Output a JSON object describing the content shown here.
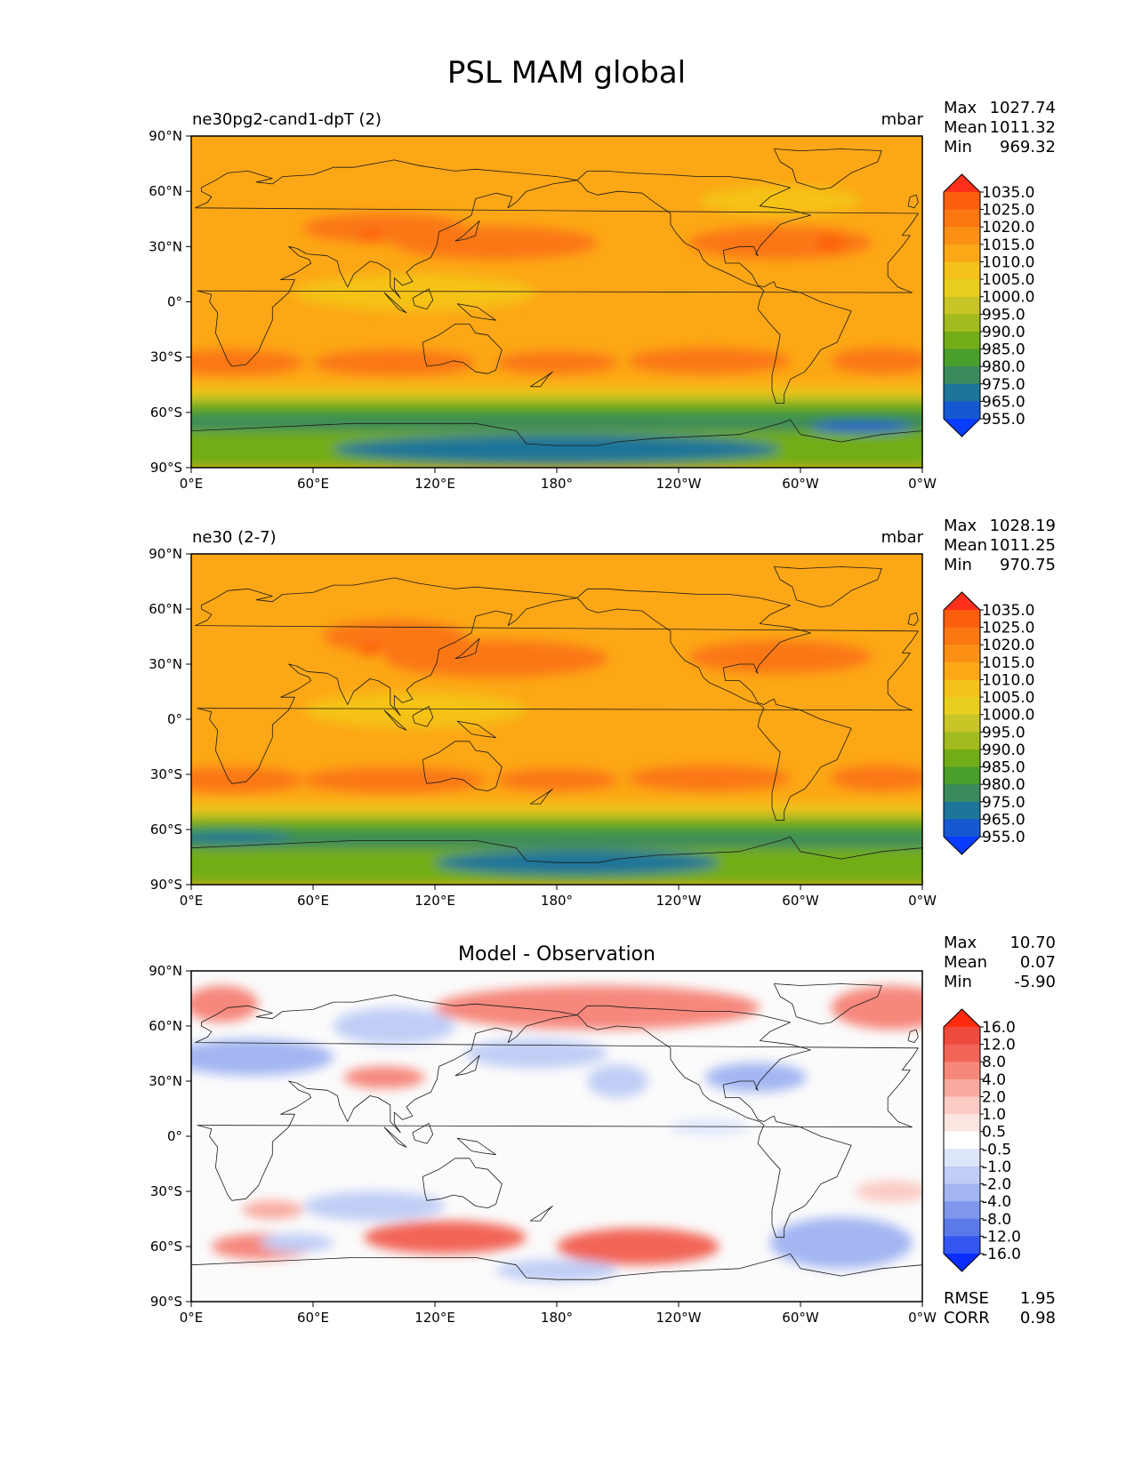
{
  "figure_title": "PSL MAM global",
  "colors": {
    "ocean_base": "#fca716",
    "land_line": "#1a1a1a",
    "diff_base": "#fbfbfb"
  },
  "chart_data": [
    {
      "type": "heatmap",
      "title_left": "ne30pg2-cand1-dpT (2)",
      "units": "mbar",
      "stats": [
        {
          "label": "Max",
          "value": "1027.74"
        },
        {
          "label": "Mean",
          "value": "1011.32"
        },
        {
          "label": "Min",
          "value": "969.32"
        }
      ],
      "xticks": [
        "0°E",
        "60°E",
        "120°E",
        "180°",
        "120°W",
        "60°W",
        "0°W"
      ],
      "yticks": [
        "90°N",
        "60°N",
        "30°N",
        "0°",
        "30°S",
        "60°S",
        "90°S"
      ],
      "xlim": [
        0,
        360
      ],
      "ylim": [
        -90,
        90
      ],
      "colorbar": {
        "labels": [
          "1035.0",
          "1025.0",
          "1020.0",
          "1015.0",
          "1010.0",
          "1005.0",
          "1000.0",
          "995.0",
          "990.0",
          "985.0",
          "980.0",
          "975.0",
          "965.0",
          "955.0"
        ],
        "colors": [
          "#ff3019",
          "#fd5e0e",
          "#fb7712",
          "#fb9014",
          "#fca716",
          "#f5c219",
          "#e8cf1f",
          "#c8c526",
          "#a2bb1f",
          "#72ad18",
          "#4a9e2c",
          "#3a8a5c",
          "#1d7599",
          "#1558d0",
          "#0a3cff"
        ]
      },
      "fields": [
        {
          "lon": 150,
          "lat": 32,
          "level": 2,
          "rx": 50,
          "ry": 9
        },
        {
          "lon": 290,
          "lat": 32,
          "level": 2,
          "rx": 45,
          "ry": 9
        },
        {
          "lon": 95,
          "lat": 40,
          "level": 2,
          "rx": 40,
          "ry": 8
        },
        {
          "lon": 315,
          "lat": 32,
          "level": 1,
          "rx": 7,
          "ry": 4
        },
        {
          "lon": 88,
          "lat": 36,
          "level": 1,
          "rx": 6,
          "ry": 3
        },
        {
          "lon": 20,
          "lat": -33,
          "level": 2,
          "rx": 35,
          "ry": 7
        },
        {
          "lon": 100,
          "lat": -33,
          "level": 2,
          "rx": 40,
          "ry": 7
        },
        {
          "lon": 180,
          "lat": -33,
          "level": 2,
          "rx": 30,
          "ry": 6
        },
        {
          "lon": 255,
          "lat": -32,
          "level": 2,
          "rx": 40,
          "ry": 7
        },
        {
          "lon": 340,
          "lat": -32,
          "level": 2,
          "rx": 25,
          "ry": 7
        },
        {
          "lon": 110,
          "lat": 5,
          "level": 5,
          "rx": 60,
          "ry": 10
        },
        {
          "lon": 290,
          "lat": 55,
          "level": 5,
          "rx": 40,
          "ry": 8
        },
        {
          "lon": 180,
          "lat": -80,
          "level": 12,
          "rx": 110,
          "ry": 8
        },
        {
          "lon": 330,
          "lat": -68,
          "level": 13,
          "rx": 25,
          "ry": 3
        }
      ],
      "bands": [
        {
          "lat_top": -45,
          "lat_bot": -50,
          "level": 5
        },
        {
          "lat_top": -50,
          "lat_bot": -54,
          "level": 7
        },
        {
          "lat_top": -54,
          "lat_bot": -58,
          "level": 9
        },
        {
          "lat_top": -58,
          "lat_bot": -62,
          "level": 10
        },
        {
          "lat_top": -62,
          "lat_bot": -70,
          "level": 11
        },
        {
          "lat_top": -70,
          "lat_bot": -90,
          "level": 9
        }
      ]
    },
    {
      "type": "heatmap",
      "title_left": "ne30 (2-7)",
      "units": "mbar",
      "stats": [
        {
          "label": "Max",
          "value": "1028.19"
        },
        {
          "label": "Mean",
          "value": "1011.25"
        },
        {
          "label": "Min",
          "value": "970.75"
        }
      ],
      "xticks": [
        "0°E",
        "60°E",
        "120°E",
        "180°",
        "120°W",
        "60°W",
        "0°W"
      ],
      "yticks": [
        "90°N",
        "60°N",
        "30°N",
        "0°",
        "30°S",
        "60°S",
        "90°S"
      ],
      "xlim": [
        0,
        360
      ],
      "ylim": [
        -90,
        90
      ],
      "colorbar": {
        "labels": [
          "1035.0",
          "1025.0",
          "1020.0",
          "1015.0",
          "1010.0",
          "1005.0",
          "1000.0",
          "995.0",
          "990.0",
          "985.0",
          "980.0",
          "975.0",
          "965.0",
          "955.0"
        ],
        "colors": [
          "#ff3019",
          "#fd5e0e",
          "#fb7712",
          "#fb9014",
          "#fca716",
          "#f5c219",
          "#e8cf1f",
          "#c8c526",
          "#a2bb1f",
          "#72ad18",
          "#4a9e2c",
          "#3a8a5c",
          "#1d7599",
          "#1558d0",
          "#0a3cff"
        ]
      },
      "fields": [
        {
          "lon": 150,
          "lat": 33,
          "level": 2,
          "rx": 55,
          "ry": 10
        },
        {
          "lon": 290,
          "lat": 34,
          "level": 2,
          "rx": 45,
          "ry": 9
        },
        {
          "lon": 100,
          "lat": 45,
          "level": 2,
          "rx": 35,
          "ry": 9
        },
        {
          "lon": 88,
          "lat": 38,
          "level": 1,
          "rx": 6,
          "ry": 3
        },
        {
          "lon": 20,
          "lat": -33,
          "level": 2,
          "rx": 35,
          "ry": 7
        },
        {
          "lon": 100,
          "lat": -33,
          "level": 2,
          "rx": 45,
          "ry": 7
        },
        {
          "lon": 180,
          "lat": -33,
          "level": 2,
          "rx": 30,
          "ry": 6
        },
        {
          "lon": 255,
          "lat": -32,
          "level": 2,
          "rx": 40,
          "ry": 7
        },
        {
          "lon": 340,
          "lat": -32,
          "level": 2,
          "rx": 25,
          "ry": 7
        },
        {
          "lon": 110,
          "lat": 5,
          "level": 5,
          "rx": 55,
          "ry": 10
        },
        {
          "lon": 190,
          "lat": -78,
          "level": 12,
          "rx": 70,
          "ry": 7
        },
        {
          "lon": 20,
          "lat": -64,
          "level": 12,
          "rx": 30,
          "ry": 3
        }
      ],
      "bands": [
        {
          "lat_top": -45,
          "lat_bot": -50,
          "level": 5
        },
        {
          "lat_top": -50,
          "lat_bot": -54,
          "level": 7
        },
        {
          "lat_top": -54,
          "lat_bot": -58,
          "level": 9
        },
        {
          "lat_top": -58,
          "lat_bot": -62,
          "level": 10
        },
        {
          "lat_top": -62,
          "lat_bot": -70,
          "level": 11
        },
        {
          "lat_top": -70,
          "lat_bot": -90,
          "level": 9
        }
      ]
    },
    {
      "type": "heatmap",
      "title_center": "Model - Observation",
      "stats": [
        {
          "label": "Max",
          "value": "10.70"
        },
        {
          "label": "Mean",
          "value": "0.07"
        },
        {
          "label": "Min",
          "value": "-5.90"
        }
      ],
      "extra_stats": [
        {
          "label": "RMSE",
          "value": "1.95"
        },
        {
          "label": "CORR",
          "value": "0.98"
        }
      ],
      "xticks": [
        "0°E",
        "60°E",
        "120°E",
        "180°",
        "120°W",
        "60°W",
        "0°W"
      ],
      "yticks": [
        "90°N",
        "60°N",
        "30°N",
        "0°",
        "30°S",
        "60°S",
        "90°S"
      ],
      "xlim": [
        0,
        360
      ],
      "ylim": [
        -90,
        90
      ],
      "colorbar": {
        "labels": [
          "16.0",
          "12.0",
          "8.0",
          "4.0",
          "2.0",
          "1.0",
          "0.5",
          "-0.5",
          "-1.0",
          "-2.0",
          "-4.0",
          "-8.0",
          "-12.0",
          "-16.0"
        ],
        "colors": [
          "#ff2a10",
          "#f04a3e",
          "#f26556",
          "#f6877b",
          "#f9aaa0",
          "#fbcbc4",
          "#fde6e2",
          "#ffffff",
          "#dde5fb",
          "#c0cdf6",
          "#a3b6f2",
          "#7e97ed",
          "#5b79e8",
          "#3456f0",
          "#0a2cff"
        ]
      },
      "fields": [
        {
          "lon": 200,
          "lat": 70,
          "level": 3,
          "rx": 80,
          "ry": 12
        },
        {
          "lon": 345,
          "lat": 70,
          "level": 3,
          "rx": 30,
          "ry": 12
        },
        {
          "lon": 15,
          "lat": 72,
          "level": 3,
          "rx": 18,
          "ry": 10
        },
        {
          "lon": 95,
          "lat": 32,
          "level": 3,
          "rx": 20,
          "ry": 6
        },
        {
          "lon": 35,
          "lat": -60,
          "level": 3,
          "rx": 25,
          "ry": 7
        },
        {
          "lon": 125,
          "lat": -55,
          "level": 2,
          "rx": 40,
          "ry": 9
        },
        {
          "lon": 220,
          "lat": -60,
          "level": 2,
          "rx": 40,
          "ry": 10
        },
        {
          "lon": 40,
          "lat": -40,
          "level": 4,
          "rx": 15,
          "ry": 5
        },
        {
          "lon": 345,
          "lat": -30,
          "level": 5,
          "rx": 18,
          "ry": 6
        },
        {
          "lon": 30,
          "lat": 43,
          "level": 10,
          "rx": 40,
          "ry": 10
        },
        {
          "lon": 100,
          "lat": 60,
          "level": 9,
          "rx": 30,
          "ry": 10
        },
        {
          "lon": 170,
          "lat": 45,
          "level": 9,
          "rx": 35,
          "ry": 8
        },
        {
          "lon": 210,
          "lat": 30,
          "level": 9,
          "rx": 15,
          "ry": 9
        },
        {
          "lon": 278,
          "lat": 32,
          "level": 10,
          "rx": 25,
          "ry": 8
        },
        {
          "lon": 320,
          "lat": -58,
          "level": 10,
          "rx": 35,
          "ry": 14
        },
        {
          "lon": 180,
          "lat": -73,
          "level": 9,
          "rx": 30,
          "ry": 6
        },
        {
          "lon": 90,
          "lat": -38,
          "level": 9,
          "rx": 35,
          "ry": 8
        },
        {
          "lon": 52,
          "lat": -58,
          "level": 9,
          "rx": 18,
          "ry": 5
        },
        {
          "lon": 255,
          "lat": 5,
          "level": 8,
          "rx": 20,
          "ry": 4
        }
      ],
      "bands": []
    }
  ]
}
